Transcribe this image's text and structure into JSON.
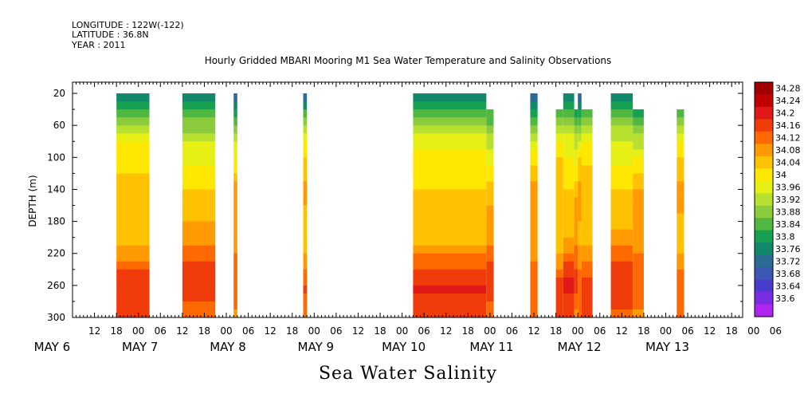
{
  "header": {
    "longitude": "LONGITUDE : 122W(-122)",
    "latitude": "LATITUDE : 36.8N",
    "year": "YEAR : 2011"
  },
  "chart_data": {
    "type": "heatmap",
    "title": "Hourly Gridded MBARI Mooring M1 Sea Water Temperature and Salinity Observations",
    "caption": "Sea Water Salinity",
    "ylabel": "DEPTH (m)",
    "y_ticks": [
      20,
      60,
      100,
      140,
      180,
      220,
      260,
      300
    ],
    "ylim": [
      300,
      6
    ],
    "y_reversed": true,
    "x_hour_labels": [
      "12",
      "18",
      "00",
      "06",
      "12",
      "18",
      "00",
      "06",
      "12",
      "18",
      "00",
      "06",
      "12",
      "18",
      "00",
      "06",
      "12",
      "18",
      "00",
      "06",
      "12",
      "18",
      "00",
      "06",
      "12",
      "18",
      "00",
      "06",
      "12",
      "18",
      "00",
      "06"
    ],
    "x_day_labels": [
      "MAY  6",
      "MAY  7",
      "MAY  8",
      "MAY  9",
      "MAY 10",
      "MAY 11",
      "MAY 12",
      "MAY 13"
    ],
    "colorbar_labels": [
      "34.28",
      "34.24",
      "34.2",
      "34.16",
      "34.12",
      "34.08",
      "34.04",
      "34",
      "33.96",
      "33.92",
      "33.88",
      "33.84",
      "33.8",
      "33.76",
      "33.72",
      "33.68",
      "33.64",
      "33.6"
    ],
    "colorbar_colors": [
      "#a00000",
      "#c00000",
      "#e01818",
      "#f03c0a",
      "#ff6a00",
      "#ff9a00",
      "#ffc200",
      "#ffe800",
      "#e6f014",
      "#b8e02e",
      "#8ccc3c",
      "#50b840",
      "#16a050",
      "#12886a",
      "#2c6c94",
      "#3c58b4",
      "#4a3ccc",
      "#7a2ce0",
      "#b026f0"
    ],
    "segments": [
      {
        "start": "May 6 18:00",
        "end": "May 7 03:00",
        "top_depth": 20
      },
      {
        "start": "May 7 12:00",
        "end": "May 7 21:00",
        "top_depth": 20
      },
      {
        "start": "May 8 02:00",
        "end": "May 8 03:00",
        "top_depth": 20
      },
      {
        "start": "May 8 21:00",
        "end": "May 8 22:00",
        "top_depth": 20
      },
      {
        "start": "May 10 03:00",
        "end": "May 10 23:00",
        "top_depth": 20
      },
      {
        "start": "May 10 23:00",
        "end": "May 11 01:00",
        "top_depth": 40
      },
      {
        "start": "May 11 11:00",
        "end": "May 11 13:00",
        "top_depth": 20
      },
      {
        "start": "May 11 18:00",
        "end": "May 11 20:00",
        "top_depth": 40
      },
      {
        "start": "May 11 20:00",
        "end": "May 11 23:00",
        "top_depth": 20
      },
      {
        "start": "May 11 23:00",
        "end": "May 12 00:00",
        "top_depth": 40
      },
      {
        "start": "May 12 00:00",
        "end": "May 12 01:00",
        "top_depth": 20
      },
      {
        "start": "May 12 01:00",
        "end": "May 12 04:00",
        "top_depth": 40
      },
      {
        "start": "May 12 09:00",
        "end": "May 12 15:00",
        "top_depth": 20
      },
      {
        "start": "May 12 15:00",
        "end": "May 12 18:00",
        "top_depth": 40
      },
      {
        "start": "May 13 03:00",
        "end": "May 13 05:00",
        "top_depth": 40
      }
    ],
    "salinity_profile": [
      {
        "depth": 20,
        "value": 33.77
      },
      {
        "depth": 40,
        "value": 33.87
      },
      {
        "depth": 60,
        "value": 33.95
      },
      {
        "depth": 80,
        "value": 34.01
      },
      {
        "depth": 100,
        "value": 34.05
      },
      {
        "depth": 120,
        "value": 34.08
      },
      {
        "depth": 140,
        "value": 34.11
      },
      {
        "depth": 160,
        "value": 34.12
      },
      {
        "depth": 180,
        "value": 34.11
      },
      {
        "depth": 200,
        "value": 34.12
      },
      {
        "depth": 220,
        "value": 34.15
      },
      {
        "depth": 240,
        "value": 34.19
      },
      {
        "depth": 260,
        "value": 34.22
      },
      {
        "depth": 280,
        "value": 34.2
      },
      {
        "depth": 300,
        "value": 34.18
      }
    ]
  }
}
